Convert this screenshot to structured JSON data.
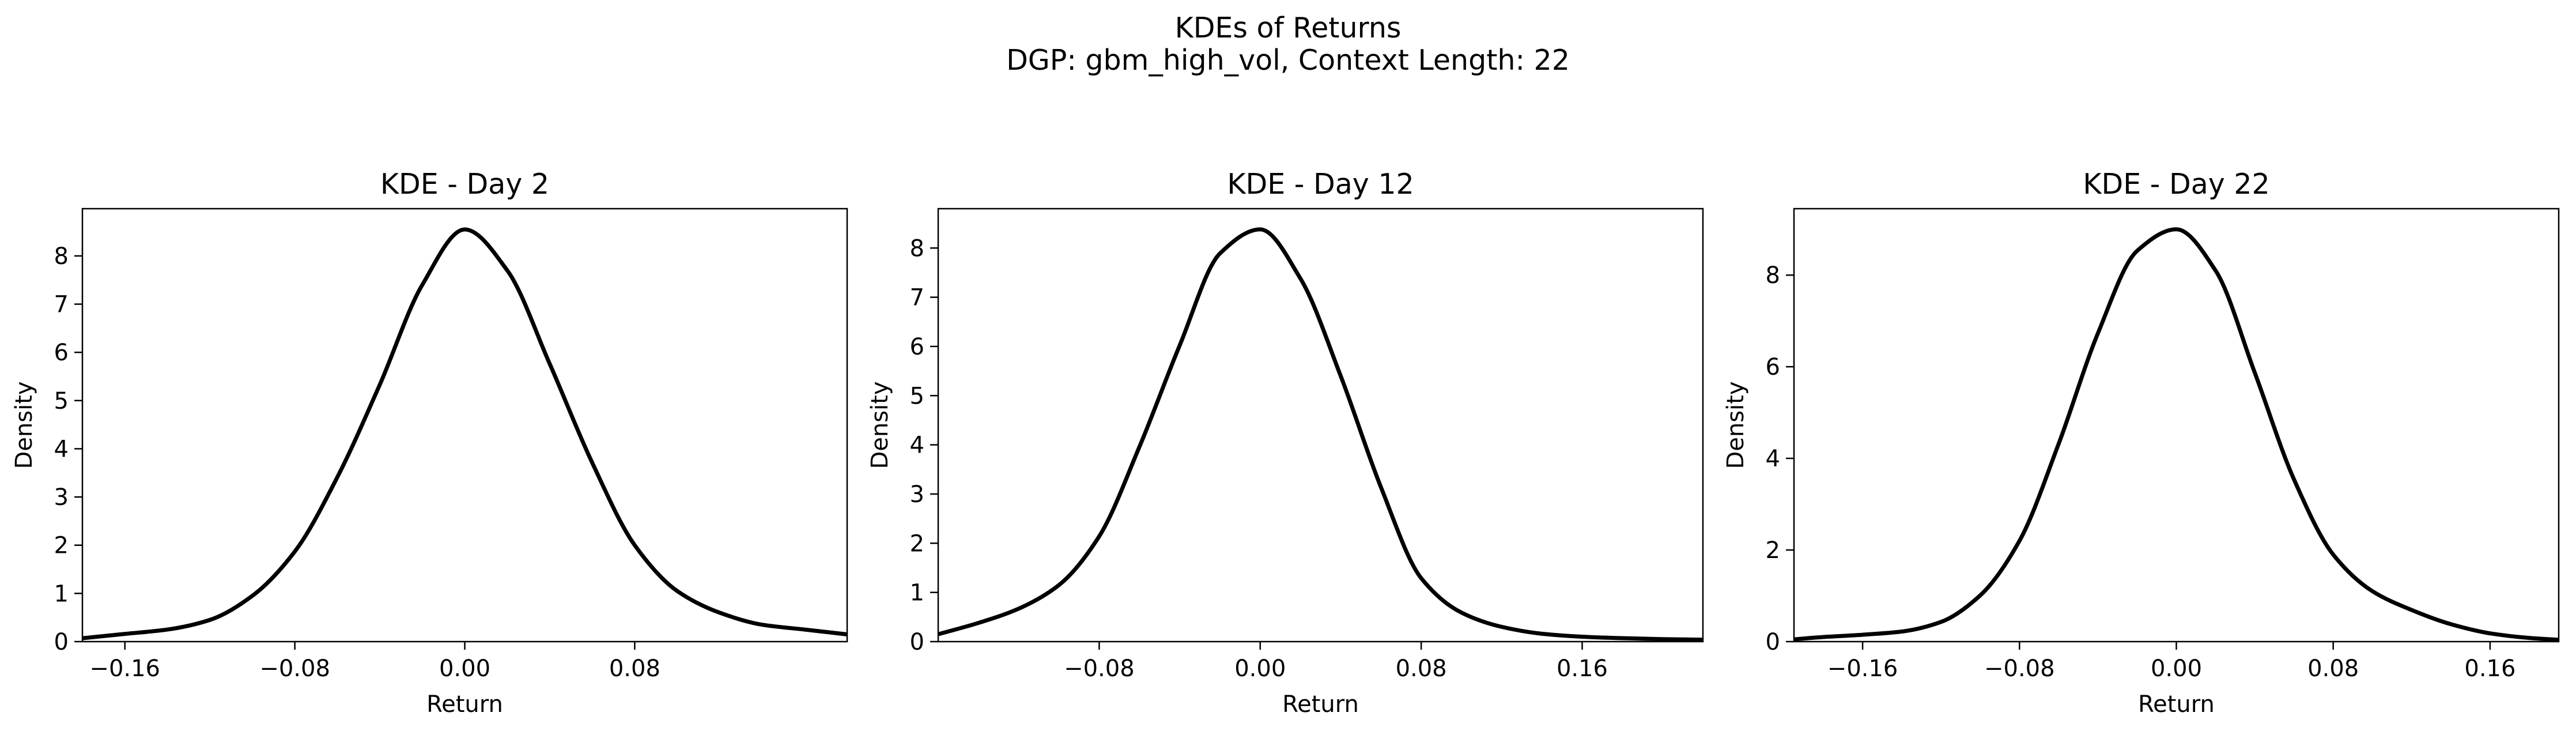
{
  "suptitle": {
    "line1": "KDEs of Returns",
    "line2": "DGP: gbm_high_vol, Context Length: 22"
  },
  "chart_data": [
    {
      "type": "line",
      "title": "KDE - Day 2",
      "xlabel": "Return",
      "ylabel": "Density",
      "xlim": [
        -0.18,
        0.18
      ],
      "ylim": [
        0,
        8.98
      ],
      "xticks": [
        -0.16,
        -0.08,
        0.0,
        0.08
      ],
      "xtick_labels": [
        "−0.16",
        "−0.08",
        "0.00",
        "0.08"
      ],
      "yticks": [
        0,
        1,
        2,
        3,
        4,
        5,
        6,
        7,
        8
      ],
      "ytick_labels": [
        "0",
        "1",
        "2",
        "3",
        "4",
        "5",
        "6",
        "7",
        "8"
      ],
      "series": [
        {
          "color": "#000000",
          "x": [
            -0.18,
            -0.16,
            -0.14,
            -0.12,
            -0.1,
            -0.08,
            -0.06,
            -0.04,
            -0.02,
            0.0,
            0.02,
            0.04,
            0.06,
            0.08,
            0.1,
            0.12,
            0.14,
            0.16,
            0.18
          ],
          "y": [
            0.07,
            0.16,
            0.25,
            0.45,
            0.95,
            1.87,
            3.41,
            5.33,
            7.4,
            8.55,
            7.7,
            5.76,
            3.71,
            2.0,
            1.05,
            0.6,
            0.35,
            0.25,
            0.15
          ]
        }
      ]
    },
    {
      "type": "line",
      "title": "KDE - Day 12",
      "xlabel": "Return",
      "ylabel": "Density",
      "xlim": [
        -0.16,
        0.22
      ],
      "ylim": [
        0,
        8.8
      ],
      "xticks": [
        -0.08,
        0.0,
        0.08,
        0.16
      ],
      "xtick_labels": [
        "−0.08",
        "0.00",
        "0.08",
        "0.16"
      ],
      "yticks": [
        0,
        1,
        2,
        3,
        4,
        5,
        6,
        7,
        8
      ],
      "ytick_labels": [
        "0",
        "1",
        "2",
        "3",
        "4",
        "5",
        "6",
        "7",
        "8"
      ],
      "series": [
        {
          "color": "#000000",
          "x": [
            -0.16,
            -0.14,
            -0.12,
            -0.1,
            -0.08,
            -0.06,
            -0.04,
            -0.02,
            0.0,
            0.02,
            0.04,
            0.06,
            0.08,
            0.1,
            0.12,
            0.14,
            0.16,
            0.18,
            0.2,
            0.22
          ],
          "y": [
            0.15,
            0.38,
            0.67,
            1.15,
            2.14,
            3.96,
            6.02,
            7.89,
            8.38,
            7.38,
            5.4,
            3.14,
            1.29,
            0.59,
            0.3,
            0.16,
            0.1,
            0.07,
            0.05,
            0.04
          ]
        }
      ]
    },
    {
      "type": "line",
      "title": "KDE - Day 22",
      "xlabel": "Return",
      "ylabel": "Density",
      "xlim": [
        -0.195,
        0.195
      ],
      "ylim": [
        0,
        9.45
      ],
      "xticks": [
        -0.16,
        -0.08,
        0.0,
        0.08,
        0.16
      ],
      "xtick_labels": [
        "−0.16",
        "−0.08",
        "0.00",
        "0.08",
        "0.16"
      ],
      "yticks": [
        0,
        2,
        4,
        6,
        8
      ],
      "ytick_labels": [
        "0",
        "2",
        "4",
        "6",
        "8"
      ],
      "series": [
        {
          "color": "#000000",
          "x": [
            -0.195,
            -0.18,
            -0.16,
            -0.14,
            -0.12,
            -0.1,
            -0.08,
            -0.06,
            -0.04,
            -0.02,
            0.0,
            0.02,
            0.04,
            0.06,
            0.08,
            0.1,
            0.12,
            0.14,
            0.16,
            0.18,
            0.195
          ],
          "y": [
            0.05,
            0.1,
            0.15,
            0.22,
            0.43,
            1.01,
            2.2,
            4.32,
            6.73,
            8.53,
            9.0,
            8.1,
            5.87,
            3.54,
            1.9,
            1.1,
            0.69,
            0.38,
            0.18,
            0.08,
            0.04
          ]
        }
      ]
    }
  ]
}
